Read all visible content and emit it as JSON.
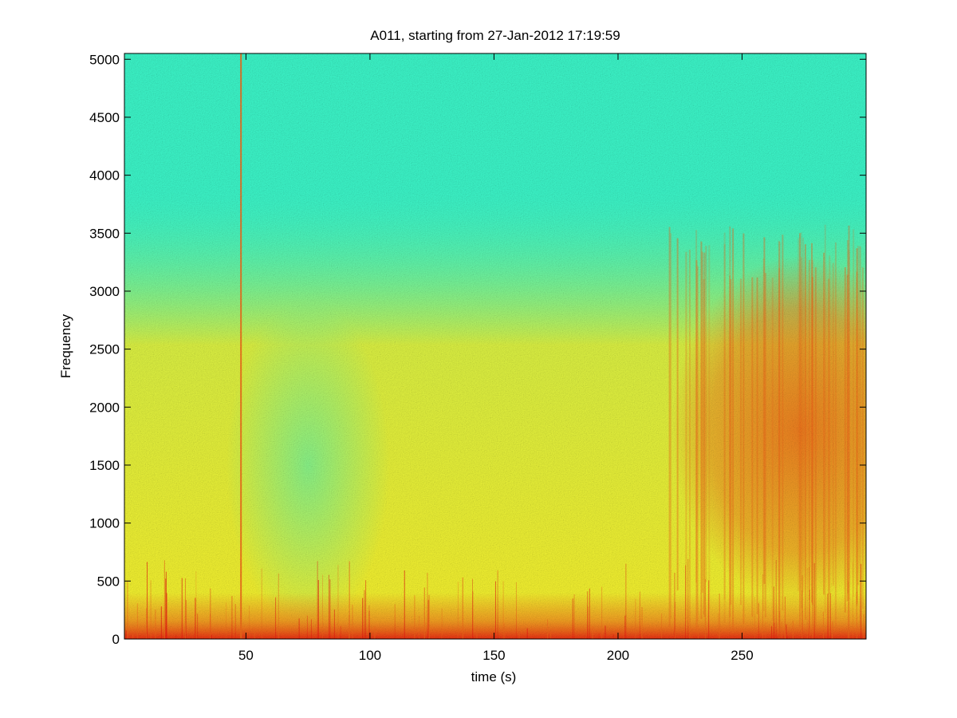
{
  "chart_data": {
    "type": "heatmap",
    "title": "A011, starting from 27-Jan-2012 17:19:59",
    "xlabel": "time (s)",
    "ylabel": "Frequency",
    "xlim": [
      1,
      300
    ],
    "ylim": [
      0,
      5050
    ],
    "x_ticks": [
      50,
      100,
      150,
      200,
      250
    ],
    "y_ticks": [
      0,
      500,
      1000,
      1500,
      2000,
      2500,
      3000,
      3500,
      4000,
      4500,
      5000
    ],
    "colormap": "jet",
    "grid": false,
    "legend": "none",
    "colors": {
      "low": "#3bf5c8",
      "mid": "#f7f02a",
      "high": "#f06a1a",
      "peak": "#e81a10"
    },
    "features": {
      "bright_vertical_line_time": 48,
      "energy_cutoff_frequency": 3650,
      "strong_band_start_time": 215,
      "strong_band_frequency_range": [
        500,
        3100
      ],
      "low_frequency_band_max": 400
    }
  }
}
